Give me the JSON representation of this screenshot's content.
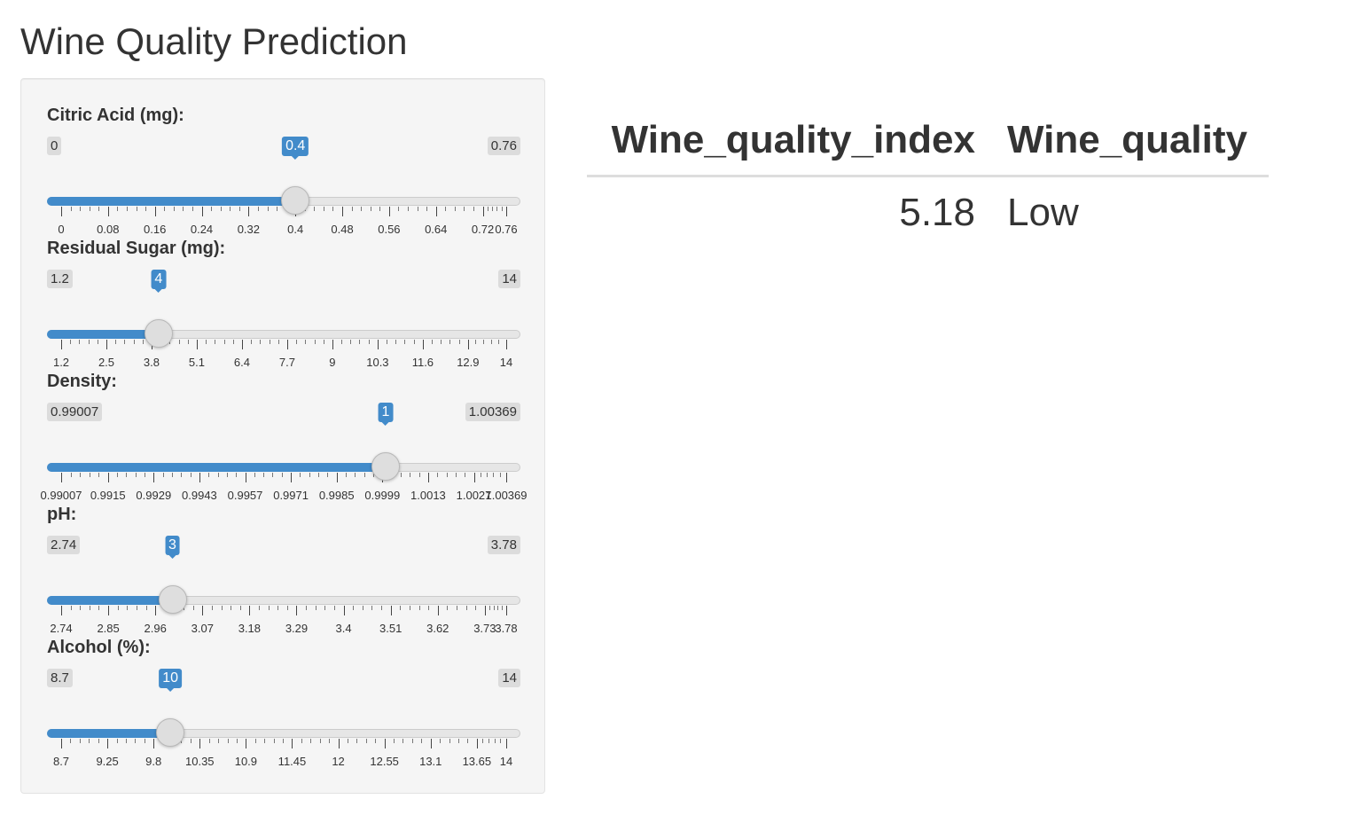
{
  "page": {
    "title": "Wine Quality Prediction"
  },
  "sliders": [
    {
      "label": "Citric Acid (mg):",
      "min": 0,
      "max": 0.76,
      "value": 0.4,
      "min_label": "0",
      "max_label": "0.76",
      "value_label": "0.4",
      "major_ticks": [
        0,
        0.08,
        0.16,
        0.24,
        0.32,
        0.4,
        0.48,
        0.56,
        0.64,
        0.72,
        0.76
      ],
      "tick_labels": [
        "0",
        "0.08",
        "0.16",
        "0.24",
        "0.32",
        "0.4",
        "0.48",
        "0.56",
        "0.64",
        "0.72",
        "0.76"
      ],
      "minor_per_gap": 4
    },
    {
      "label": "Residual Sugar (mg):",
      "min": 1.2,
      "max": 14,
      "value": 4,
      "min_label": "1.2",
      "max_label": "14",
      "value_label": "4",
      "major_ticks": [
        1.2,
        2.5,
        3.8,
        5.1,
        6.4,
        7.7,
        9,
        10.3,
        11.6,
        12.9,
        14
      ],
      "tick_labels": [
        "1.2",
        "2.5",
        "3.8",
        "5.1",
        "6.4",
        "7.7",
        "9",
        "10.3",
        "11.6",
        "12.9",
        "14"
      ],
      "minor_per_gap": 4
    },
    {
      "label": "Density:",
      "min": 0.99007,
      "max": 1.00369,
      "value": 1,
      "min_label": "0.99007",
      "max_label": "1.00369",
      "value_label": "1",
      "major_ticks": [
        0.99007,
        0.9915,
        0.9929,
        0.9943,
        0.9957,
        0.9971,
        0.9985,
        0.9999,
        1.0013,
        1.0027,
        1.00369
      ],
      "tick_labels": [
        "0.99007",
        "0.9915",
        "0.9929",
        "0.9943",
        "0.9957",
        "0.9971",
        "0.9985",
        "0.9999",
        "1.0013",
        "1.0027",
        "1.00369"
      ],
      "minor_per_gap": 4
    },
    {
      "label": "pH:",
      "min": 2.74,
      "max": 3.78,
      "value": 3,
      "min_label": "2.74",
      "max_label": "3.78",
      "value_label": "3",
      "major_ticks": [
        2.74,
        2.85,
        2.96,
        3.07,
        3.18,
        3.29,
        3.4,
        3.51,
        3.62,
        3.73,
        3.78
      ],
      "tick_labels": [
        "2.74",
        "2.85",
        "2.96",
        "3.07",
        "3.18",
        "3.29",
        "3.4",
        "3.51",
        "3.62",
        "3.73",
        "3.78"
      ],
      "minor_per_gap": 4
    },
    {
      "label": "Alcohol (%):",
      "min": 8.7,
      "max": 14,
      "value": 10,
      "min_label": "8.7",
      "max_label": "14",
      "value_label": "10",
      "major_ticks": [
        8.7,
        9.25,
        9.8,
        10.35,
        10.9,
        11.45,
        12,
        12.55,
        13.1,
        13.65,
        14
      ],
      "tick_labels": [
        "8.7",
        "9.25",
        "9.8",
        "10.35",
        "10.9",
        "11.45",
        "12",
        "12.55",
        "13.1",
        "13.65",
        "14"
      ],
      "minor_per_gap": 4
    }
  ],
  "results": {
    "headers": [
      "Wine_quality_index",
      "Wine_quality"
    ],
    "rows": [
      [
        "5.18",
        "Low"
      ]
    ]
  },
  "colors": {
    "accent": "#428bca",
    "panel_bg": "#f5f5f5",
    "track": "#e6e6e6",
    "handle": "#dedede"
  }
}
